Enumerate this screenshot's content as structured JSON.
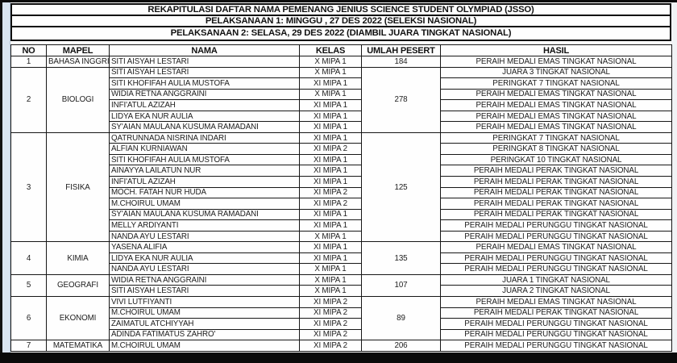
{
  "title": {
    "line1": "REKAPITULASI DAFTAR NAMA PEMENANG JENIUS SCIENCE STUDENT OLYMPIAD (JSSO)",
    "line2": "PELAKSANAAN 1: MINGGU , 27 DES 2022 (SELEKSI NASIONAL)",
    "line3": "PELAKSANAAN 2: SELASA, 29 DES 2022 (DIAMBIL JUARA TINGKAT NASIONAL)"
  },
  "colors": {
    "border": "#171717",
    "page_bg": "#fdfdfd",
    "bottom_bar": "#0a0a0a",
    "left_strip": "#d9e4f0",
    "text": "#1d1d1d"
  },
  "table": {
    "headers": [
      "NO",
      "MAPEL",
      "NAMA",
      "KELAS",
      "UMLAH PESERT",
      "HASIL"
    ],
    "sections": [
      {
        "no": "1",
        "mapel": "BAHASA INGGRIS",
        "jumlah": "184",
        "rows": [
          {
            "nama": "SITI AISYAH LESTARI",
            "kelas": "X MIPA 1",
            "hasil": "PERAIH MEDALI EMAS TINGKAT NASIONAL"
          }
        ]
      },
      {
        "no": "2",
        "mapel": "BIOLOGI",
        "jumlah": "278",
        "rows": [
          {
            "nama": "SITI AISYAH LESTARI",
            "kelas": "X MIPA 1",
            "hasil": "JUARA 3 TINGKAT NASIONAL"
          },
          {
            "nama": "SITI KHOFIFAH AULIA MUSTOFA",
            "kelas": "XI MIPA 1",
            "hasil": "PERINGKAT 7 TINGKAT NASIONAL"
          },
          {
            "nama": "WIDIA RETNA ANGGRAINI",
            "kelas": "X MIPA 1",
            "hasil": "PERAIH MEDALI EMAS TINGKAT NASIONAL"
          },
          {
            "nama": "INFI'ATUL AZIZAH",
            "kelas": "XI MIPA 1",
            "hasil": "PERAIH MEDALI EMAS TINGKAT NASIONAL"
          },
          {
            "nama": "LIDYA EKA NUR AULIA",
            "kelas": "XI MIPA 1",
            "hasil": "PERAIH MEDALI EMAS TINGKAT NASIONAL"
          },
          {
            "nama": "SY'AIAN MAULANA KUSUMA RAMADANI",
            "kelas": "XI MIPA 1",
            "hasil": "PERAIH MEDALI EMAS TINGKAT NASIONAL"
          }
        ]
      },
      {
        "no": "3",
        "mapel": "FISIKA",
        "jumlah": "125",
        "rows": [
          {
            "nama": "QATRUNNADA NISRINA INDARI",
            "kelas": "XI MIPA 1",
            "hasil": "PERINGKAT 7 TINGKAT NASIONAL"
          },
          {
            "nama": "ALFIAN KURNIAWAN",
            "kelas": "XI MIPA 2",
            "hasil": "PERINGKAT 8 TINGKAT NASIONAL"
          },
          {
            "nama": "SITI KHOFIFAH AULIA MUSTOFA",
            "kelas": "XI MIPA 1",
            "hasil": "PERINGKAT 10 TINGKAT NASIONAL"
          },
          {
            "nama": "AINAYYA LAILATUN NUR",
            "kelas": "XI MIPA 1",
            "hasil": "PERAIH MEDALI PERAK TINGKAT NASIONAL"
          },
          {
            "nama": "INFI'ATUL AZIZAH",
            "kelas": "XI MIPA 1",
            "hasil": "PERAIH MEDALI PERAK TINGKAT NASIONAL"
          },
          {
            "nama": "MOCH. FATAH NUR HUDA",
            "kelas": "XI MIPA 2",
            "hasil": "PERAIH MEDALI PERAK TINGKAT NASIONAL"
          },
          {
            "nama": "M.CHOIRUL UMAM",
            "kelas": "XI MIPA 2",
            "hasil": "PERAIH MEDALI PERAK TINGKAT NASIONAL"
          },
          {
            "nama": "SY'AIAN MAULANA KUSUMA RAMADANI",
            "kelas": "XI MIPA 1",
            "hasil": "PERAIH MEDALI PERAK TINGKAT NASIONAL"
          },
          {
            "nama": "MELLY ARDIYANTI",
            "kelas": "XI MIPA 1",
            "hasil": "PERAIH MEDALI PERUNGGU TINGKAT NASIONAL"
          },
          {
            "nama": "NANDA AYU LESTARI",
            "kelas": "X MIPA 1",
            "hasil": "PERAIH MEDALI PERUNGGU TINGKAT NASIONAL"
          }
        ]
      },
      {
        "no": "4",
        "mapel": "KIMIA",
        "jumlah": "135",
        "rows": [
          {
            "nama": "YASENA ALIFIA",
            "kelas": "XI MIPA 1",
            "hasil": "PERAIH MEDALI EMAS TINGKAT NASIONAL"
          },
          {
            "nama": "LIDYA EKA NUR AULIA",
            "kelas": "XI MIPA 1",
            "hasil": "PERAIH MEDALI PERUNGGU TINGKAT NASIONAL"
          },
          {
            "nama": "NANDA AYU LESTARI",
            "kelas": "X MIPA 1",
            "hasil": "PERAIH MEDALI PERUNGGU TINGKAT NASIONAL"
          }
        ]
      },
      {
        "no": "5",
        "mapel": "GEOGRAFI",
        "jumlah": "107",
        "rows": [
          {
            "nama": "WIDIA RETNA ANGGRAINI",
            "kelas": "X MIPA 1",
            "hasil": "JUARA 1 TINGKAT NASIONAL"
          },
          {
            "nama": "SITI AISYAH LESTARI",
            "kelas": "X MIPA 1",
            "hasil": "JUARA 2 TINGKAT NASIONAL"
          }
        ]
      },
      {
        "no": "6",
        "mapel": "EKONOMI",
        "jumlah": "89",
        "rows": [
          {
            "nama": "VIVI LUTFIYANTI",
            "kelas": "XI MIPA 2",
            "hasil": "PERAIH MEDALI EMAS TINGKAT NASIONAL"
          },
          {
            "nama": "M.CHOIRUL UMAM",
            "kelas": "XI MIPA 2",
            "hasil": "PERAIH MEDALI PERAK TINGKAT NASIONAL"
          },
          {
            "nama": "ZAIMATUL ATCHIYYAH",
            "kelas": "XI MIPA 2",
            "hasil": "PERAIH MEDALI PERUNGGU TINGKAT NASIONAL"
          },
          {
            "nama": "ADINDA FATIMATUS ZAHRO'",
            "kelas": "XI MIPA 2",
            "hasil": "PERAIH MEDALI PERUNGGU TINGKAT NASIONAL"
          }
        ]
      },
      {
        "no": "7",
        "mapel": "MATEMATIKA",
        "jumlah": "206",
        "rows": [
          {
            "nama": "M.CHOIRUL UMAM",
            "kelas": "XI MIPA 2",
            "hasil": "PERAIH MEDALI PERUNGGU TINGKAT NASIONAL"
          }
        ]
      }
    ]
  }
}
